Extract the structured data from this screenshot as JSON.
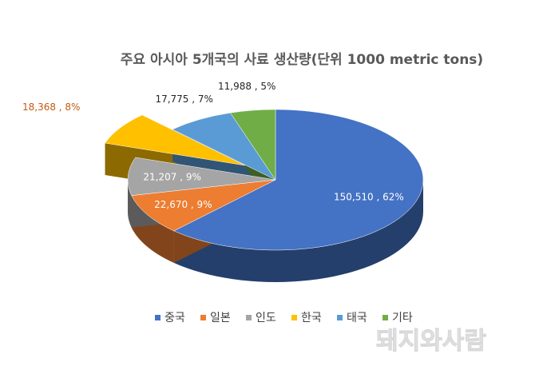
{
  "chart_data": {
    "type": "pie",
    "title": "주요 아시아 5개국의 사료 생산량(단위 1000 metric tons)",
    "categories": [
      "중국",
      "일본",
      "인도",
      "한국",
      "태국",
      "기타"
    ],
    "values": [
      150510,
      22670,
      21207,
      18368,
      17775,
      11988
    ],
    "value_labels": [
      "150,510 , 62%",
      "22,670 , 9%",
      "21,207 , 9%",
      "18,368 , 8%",
      "17,775 , 7%",
      "11,988 , 5%"
    ],
    "colors": [
      "#4472c4",
      "#ed7d31",
      "#a5a5a5",
      "#ffc000",
      "#5b9bd5",
      "#70ad47"
    ],
    "exploded": [
      3
    ],
    "legend": "bottom"
  },
  "watermark": "돼지와사람"
}
